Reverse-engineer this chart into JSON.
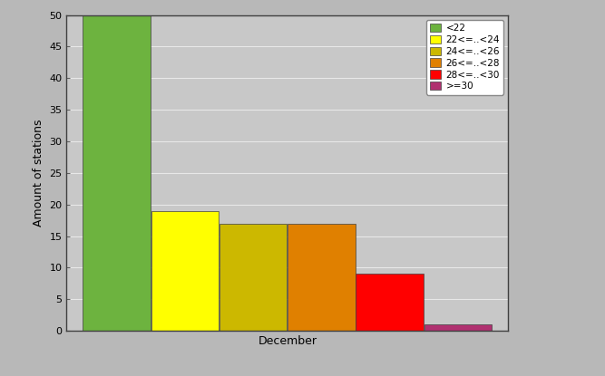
{
  "xlabel": "December",
  "ylabel": "Amount of stations",
  "categories": [
    "<22",
    "22<=..<24",
    "24<=..<26",
    "26<=..<28",
    "28<=..<30",
    ">=30"
  ],
  "values": [
    50,
    19,
    17,
    17,
    9,
    1
  ],
  "colors": [
    "#6db33f",
    "#ffff00",
    "#ccb800",
    "#e08000",
    "#ff0000",
    "#b03070"
  ],
  "ylim": [
    0,
    50
  ],
  "yticks": [
    0,
    5,
    10,
    15,
    20,
    25,
    30,
    35,
    40,
    45,
    50
  ],
  "background_color": "#b8b8b8",
  "bar_edge_color": "#404040",
  "axis_bg": "#c8c8c8",
  "grid_color": "#e8e8e8",
  "legend_fontsize": 7.5
}
